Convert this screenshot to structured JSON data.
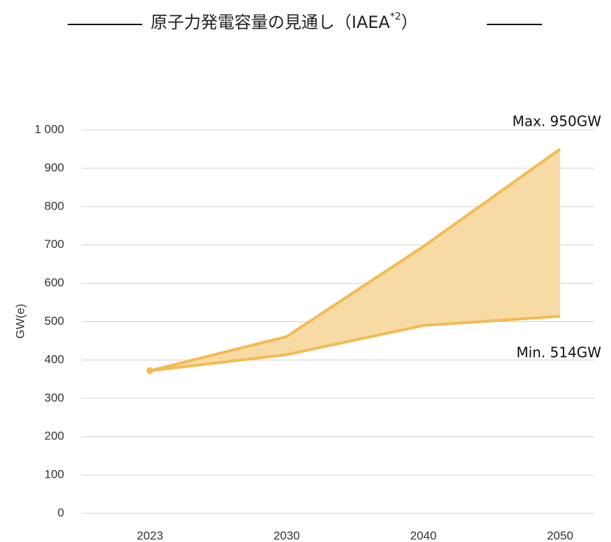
{
  "chart_data": {
    "type": "range-area",
    "title": [
      "原子力発電容量の見通し（IAEA",
      "*2",
      "）"
    ],
    "ylabel": "GW(e)",
    "categories": [
      "2023",
      "2030",
      "2040",
      "2050"
    ],
    "series": [
      {
        "name": "Max",
        "color": "#f2bb52",
        "values": [
          372,
          461,
          696,
          950
        ]
      },
      {
        "name": "Min",
        "color": "#f2bb52",
        "values": [
          372,
          414,
          490,
          514
        ]
      }
    ],
    "fill": "#f8dba4",
    "annotations": [
      "Max. 950GW",
      "Min. 514GW"
    ],
    "ylim": [
      0,
      1000
    ],
    "yticks": [
      0,
      100,
      200,
      300,
      400,
      500,
      600,
      700,
      800,
      900,
      {
        "value": 1000,
        "label": "1 000"
      }
    ],
    "grid": true
  }
}
